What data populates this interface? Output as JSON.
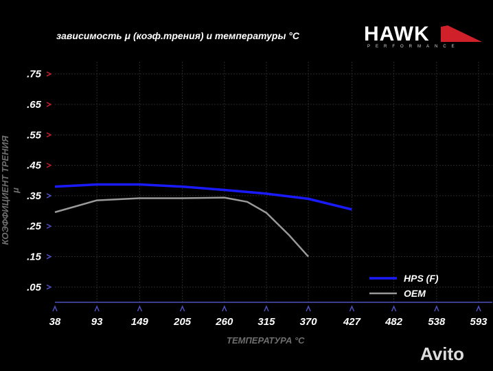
{
  "header": {
    "title": "зависимость μ (коэф.трения) и температуры °C",
    "logo": "HAWK",
    "logo_sub": "PERFORMANCE",
    "watermark": "Avito"
  },
  "chart_data": {
    "type": "line",
    "title": "зависимость μ (коэф.трения) и температуры °C",
    "xlabel": "ТЕМПЕРАТУРА °C",
    "ylabel": "КОЭФФИЦИЕНТ ТРЕНИЯ μ",
    "x_ticks": [
      "38",
      "93",
      "149",
      "205",
      "260",
      "315",
      "370",
      "427",
      "482",
      "538",
      "593"
    ],
    "y_ticks": [
      ".05",
      ".15",
      ".25",
      ".35",
      ".45",
      ".55",
      ".65",
      ".75"
    ],
    "xlim": [
      38,
      593
    ],
    "ylim": [
      0,
      0.79
    ],
    "grid": true,
    "legend": "bottom-right",
    "series": [
      {
        "name": "HPS (F)",
        "color": "#1a1aff",
        "x": [
          38,
          93,
          149,
          205,
          260,
          315,
          370,
          427
        ],
        "y": [
          0.38,
          0.387,
          0.387,
          0.38,
          0.369,
          0.357,
          0.34,
          0.305
        ]
      },
      {
        "name": "OEM",
        "color": "#9a9a9a",
        "x": [
          38,
          93,
          149,
          205,
          260,
          290,
          315,
          345,
          370
        ],
        "y": [
          0.296,
          0.335,
          0.342,
          0.342,
          0.344,
          0.33,
          0.294,
          0.22,
          0.15
        ]
      }
    ]
  }
}
